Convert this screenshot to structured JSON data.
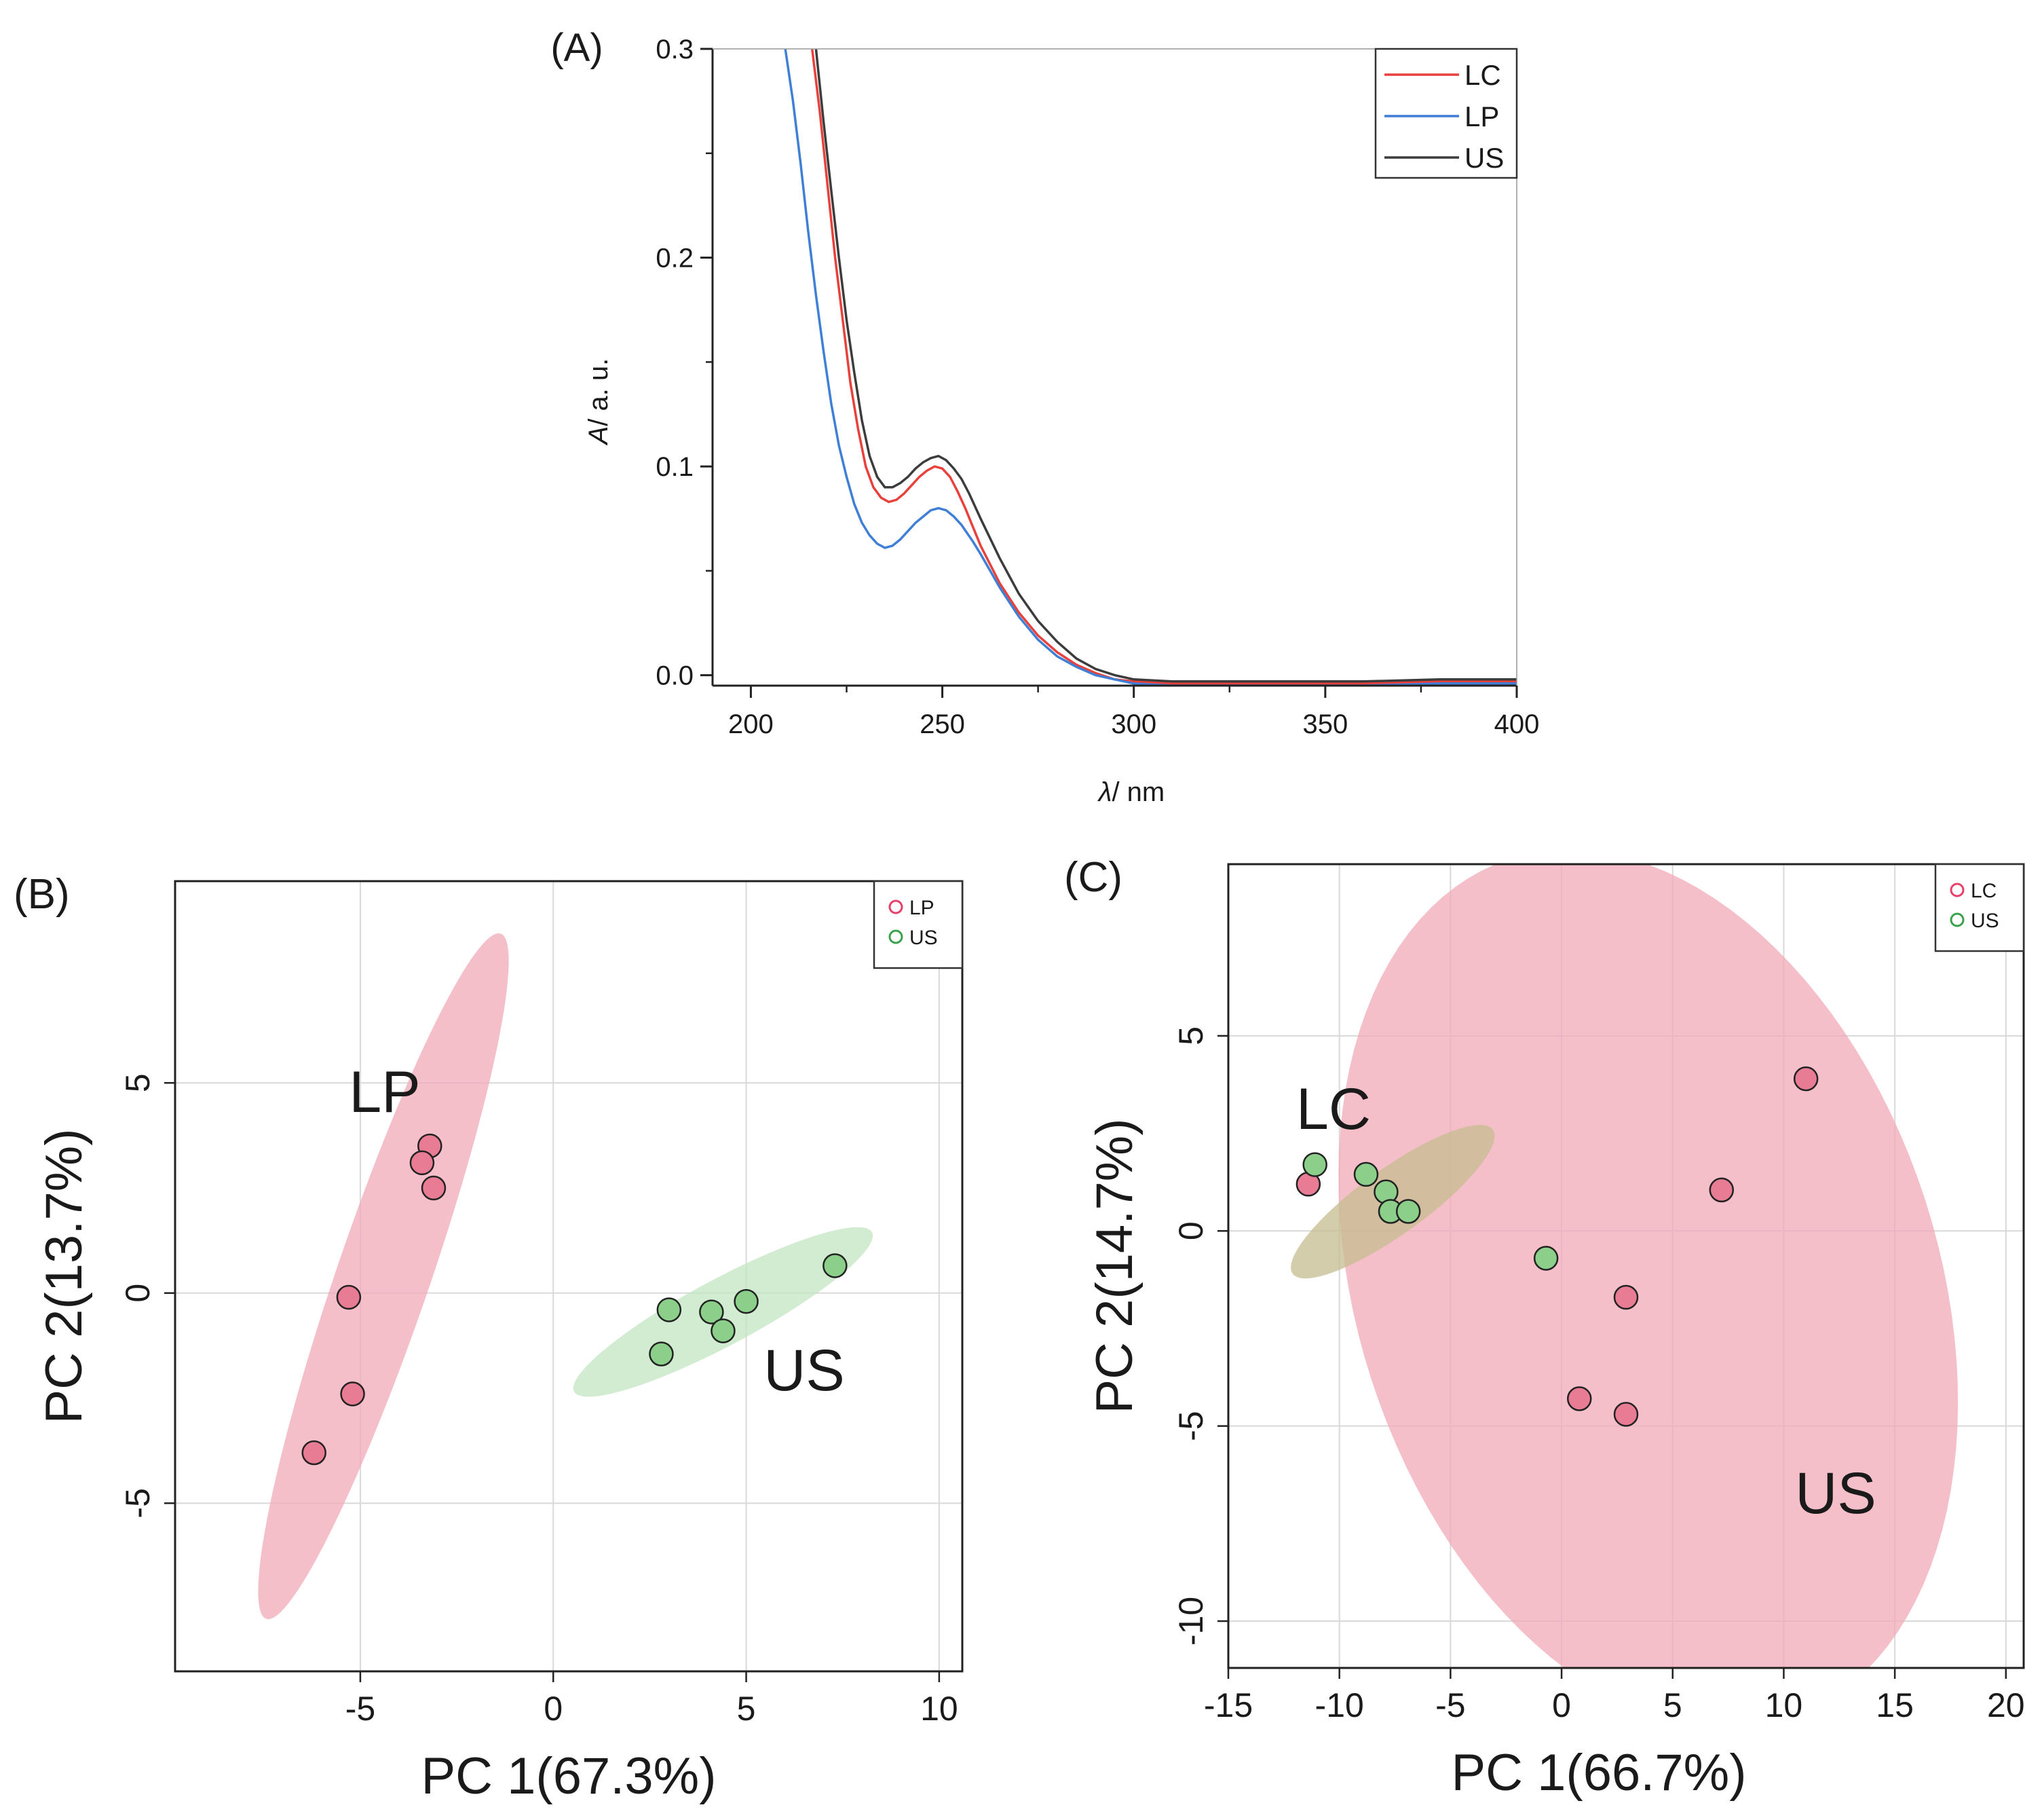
{
  "chart_data": [
    {
      "type": "line",
      "panel_label": "(A)",
      "xlabel_italic": "λ",
      "xlabel_rest": "/ nm",
      "ylabel_italic": "A",
      "ylabel_rest": "/ a. u.",
      "xlim": [
        190,
        400
      ],
      "ylim": [
        -0.005,
        0.3
      ],
      "xticks": [
        200,
        250,
        300,
        350,
        400
      ],
      "xtick_labels": [
        "200",
        "250",
        "300",
        "350",
        "400"
      ],
      "yticks": [
        0.0,
        0.1,
        0.2,
        0.3
      ],
      "ytick_labels": [
        "0.0",
        "0.1",
        "0.2",
        "0.3"
      ],
      "legend": "top-right",
      "grid": false,
      "series": [
        {
          "name": "LC",
          "color": "#e8413c",
          "x": [
            216,
            218,
            220,
            222,
            224,
            226,
            228,
            230,
            232,
            234,
            236,
            238,
            240,
            242,
            244,
            246,
            248,
            250,
            252,
            254,
            256,
            258,
            260,
            265,
            270,
            275,
            280,
            285,
            290,
            295,
            300,
            310,
            320,
            340,
            360,
            380,
            400
          ],
          "y": [
            0.3,
            0.27,
            0.235,
            0.2,
            0.17,
            0.14,
            0.118,
            0.1,
            0.09,
            0.085,
            0.083,
            0.084,
            0.087,
            0.091,
            0.095,
            0.098,
            0.1,
            0.099,
            0.095,
            0.088,
            0.08,
            0.071,
            0.062,
            0.044,
            0.03,
            0.019,
            0.011,
            0.005,
            0.001,
            -0.002,
            -0.003,
            -0.004,
            -0.004,
            -0.004,
            -0.004,
            -0.003,
            -0.003
          ]
        },
        {
          "name": "LP",
          "color": "#3f7fd6",
          "x": [
            209,
            211,
            213,
            215,
            217,
            219,
            221,
            223,
            225,
            227,
            229,
            231,
            233,
            235,
            237,
            239,
            241,
            243,
            245,
            247,
            249,
            251,
            253,
            255,
            258,
            260,
            265,
            270,
            275,
            280,
            285,
            290,
            295,
            300,
            310,
            320,
            340,
            360,
            380,
            400
          ],
          "y": [
            0.3,
            0.275,
            0.245,
            0.212,
            0.182,
            0.155,
            0.13,
            0.11,
            0.095,
            0.082,
            0.073,
            0.067,
            0.063,
            0.061,
            0.062,
            0.065,
            0.069,
            0.073,
            0.076,
            0.079,
            0.08,
            0.079,
            0.076,
            0.072,
            0.064,
            0.058,
            0.042,
            0.028,
            0.017,
            0.009,
            0.004,
            0.0,
            -0.002,
            -0.004,
            -0.005,
            -0.005,
            -0.005,
            -0.005,
            -0.004,
            -0.004
          ]
        },
        {
          "name": "US",
          "color": "#3c3c3c",
          "x": [
            217,
            219,
            221,
            223,
            225,
            227,
            229,
            231,
            233,
            235,
            237,
            239,
            241,
            243,
            245,
            247,
            249,
            251,
            253,
            255,
            257,
            260,
            265,
            270,
            275,
            280,
            285,
            290,
            295,
            300,
            310,
            320,
            340,
            360,
            380,
            400
          ],
          "y": [
            0.3,
            0.265,
            0.232,
            0.2,
            0.17,
            0.145,
            0.122,
            0.105,
            0.095,
            0.09,
            0.09,
            0.092,
            0.095,
            0.099,
            0.102,
            0.104,
            0.105,
            0.103,
            0.099,
            0.094,
            0.087,
            0.075,
            0.056,
            0.039,
            0.026,
            0.016,
            0.008,
            0.003,
            0.0,
            -0.002,
            -0.003,
            -0.003,
            -0.003,
            -0.003,
            -0.002,
            -0.002
          ]
        }
      ]
    },
    {
      "type": "scatter",
      "panel_label": "(B)",
      "xlabel": "PC 1(67.3%)",
      "ylabel": "PC 2(13.7%)",
      "xlim": [
        -9.8,
        10.6
      ],
      "ylim": [
        -9,
        9.8
      ],
      "xticks": [
        -5,
        0,
        5,
        10
      ],
      "xtick_labels": [
        "-5",
        "0",
        "5",
        "10"
      ],
      "yticks": [
        -5,
        0,
        5
      ],
      "ytick_labels": [
        "-5",
        "0",
        "5"
      ],
      "grid": true,
      "legend": "top-right",
      "group_labels": [
        "LP",
        "US"
      ],
      "series": [
        {
          "name": "LP",
          "color": "#e8406b",
          "fill": "#e87c94",
          "ellipse_color": "#f2a9b8",
          "points": [
            [
              -3.2,
              3.5
            ],
            [
              -3.4,
              3.1
            ],
            [
              -3.1,
              2.5
            ],
            [
              -5.3,
              -0.1
            ],
            [
              -5.2,
              -2.4
            ],
            [
              -6.2,
              -3.8
            ]
          ],
          "ellipse": {
            "cx": -4.4,
            "cy": 0.4,
            "rx": 8.7,
            "ry": 1.2,
            "angle": 69.5
          }
        },
        {
          "name": "US",
          "color": "#3aa24a",
          "fill": "#8ccf8a",
          "ellipse_color": "#c2e6c0",
          "points": [
            [
              3.0,
              -0.4
            ],
            [
              4.1,
              -0.45
            ],
            [
              5.0,
              -0.2
            ],
            [
              7.3,
              0.65
            ],
            [
              4.4,
              -0.9
            ],
            [
              2.8,
              -1.45
            ]
          ],
          "ellipse": {
            "cx": 4.4,
            "cy": -0.45,
            "rx": 4.3,
            "ry": 0.8,
            "angle": 26
          }
        }
      ]
    },
    {
      "type": "scatter",
      "panel_label": "(C)",
      "xlabel": "PC 1(66.7%)",
      "ylabel": "PC 2(14.7%)",
      "xlim": [
        -15,
        20.8
      ],
      "ylim": [
        -11.2,
        9.4
      ],
      "xticks": [
        -15,
        -10,
        -5,
        0,
        5,
        10,
        15,
        20
      ],
      "xtick_labels": [
        "-15",
        "-10",
        "-5",
        "0",
        "5",
        "10",
        "15",
        "20"
      ],
      "yticks": [
        -10,
        -5,
        0,
        5
      ],
      "ytick_labels": [
        "-10",
        "-5",
        "0",
        "5"
      ],
      "grid": true,
      "legend": "top-right",
      "group_labels": [
        "LC",
        "US"
      ],
      "series": [
        {
          "name": "LC",
          "color": "#e8406b",
          "fill": "#e87c94",
          "ellipse_color": "#f2a9b8",
          "points": [
            [
              -11.4,
              1.2
            ],
            [
              11.0,
              3.9
            ],
            [
              7.2,
              1.05
            ],
            [
              2.9,
              -1.7
            ],
            [
              0.8,
              -4.3
            ],
            [
              2.9,
              -4.7
            ]
          ],
          "ellipse": {
            "cx": 3.9,
            "cy": -1.5,
            "rx": 14.6,
            "ry": 10.4,
            "angle": -25
          }
        },
        {
          "name": "US",
          "color": "#3aa24a",
          "fill": "#8ccf8a",
          "ellipse_color": "#c6bc8f",
          "points": [
            [
              -11.1,
              1.7
            ],
            [
              -8.8,
              1.45
            ],
            [
              -7.9,
              1.0
            ],
            [
              -7.7,
              0.5
            ],
            [
              -6.9,
              0.5
            ],
            [
              -0.7,
              -0.7
            ]
          ],
          "ellipse": {
            "cx": -7.6,
            "cy": 0.75,
            "rx": 4.9,
            "ry": 0.95,
            "angle": 21
          }
        }
      ]
    }
  ]
}
